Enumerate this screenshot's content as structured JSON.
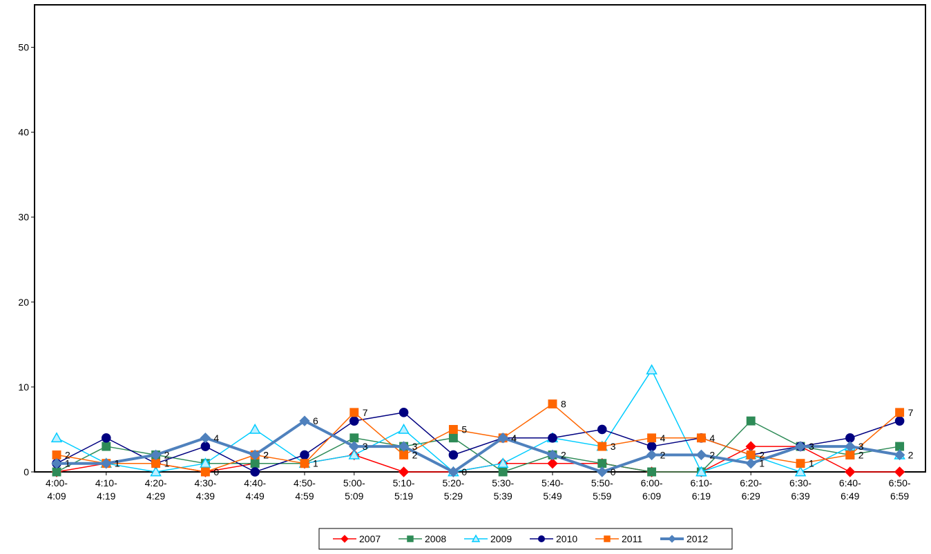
{
  "chart_data": {
    "type": "line",
    "ylim": [
      0,
      50
    ],
    "yticks": [
      0,
      10,
      20,
      30,
      40,
      50
    ],
    "categories": [
      [
        "4:00-",
        "4:09"
      ],
      [
        "4:10-",
        "4:19"
      ],
      [
        "4:20-",
        "4:29"
      ],
      [
        "4:30-",
        "4:39"
      ],
      [
        "4:40-",
        "4:49"
      ],
      [
        "4:50-",
        "4:59"
      ],
      [
        "5:00-",
        "5:09"
      ],
      [
        "5:10-",
        "5:19"
      ],
      [
        "5:20-",
        "5:29"
      ],
      [
        "5:30-",
        "5:39"
      ],
      [
        "5:40-",
        "5:49"
      ],
      [
        "5:50-",
        "5:59"
      ],
      [
        "6:00-",
        "6:09"
      ],
      [
        "6:10-",
        "6:19"
      ],
      [
        "6:20-",
        "6:29"
      ],
      [
        "6:30-",
        "6:39"
      ],
      [
        "6:40-",
        "6:49"
      ],
      [
        "6:50-",
        "6:59"
      ]
    ],
    "legend_position": "bottom",
    "series": [
      {
        "name": "2007",
        "color": "#ff0000",
        "marker": "diamond",
        "width": 1.5,
        "labels": false,
        "values": [
          0,
          1,
          1,
          0,
          1,
          1,
          2,
          0,
          0,
          1,
          1,
          1,
          0,
          0,
          3,
          3,
          0,
          0
        ]
      },
      {
        "name": "2008",
        "color": "#2e8b57",
        "marker": "square",
        "width": 1.5,
        "labels": false,
        "values": [
          0,
          3,
          2,
          1,
          1,
          1,
          4,
          3,
          4,
          0,
          2,
          1,
          0,
          0,
          6,
          3,
          2,
          3
        ]
      },
      {
        "name": "2009",
        "color": "#00ccff",
        "marker": "triangle",
        "width": 1.5,
        "labels": false,
        "values": [
          4,
          1,
          0,
          1,
          5,
          1,
          2,
          5,
          0,
          1,
          4,
          3,
          12,
          0,
          2,
          0,
          3,
          2
        ]
      },
      {
        "name": "2010",
        "color": "#000080",
        "marker": "circle",
        "width": 1.5,
        "labels": false,
        "values": [
          1,
          4,
          1,
          3,
          0,
          2,
          6,
          7,
          2,
          4,
          4,
          5,
          3,
          4,
          2,
          3,
          4,
          6
        ]
      },
      {
        "name": "2011",
        "color": "#ff6600",
        "marker": "square",
        "width": 1.5,
        "labels": true,
        "values": [
          2,
          1,
          1,
          0,
          2,
          1,
          7,
          2,
          5,
          4,
          8,
          3,
          4,
          4,
          2,
          1,
          2,
          7
        ]
      },
      {
        "name": "2012",
        "color": "#4f81bd",
        "marker": "diamond",
        "width": 4,
        "labels": true,
        "values": [
          1,
          1,
          2,
          4,
          2,
          6,
          3,
          3,
          0,
          4,
          2,
          0,
          2,
          2,
          1,
          3,
          3,
          2
        ]
      }
    ]
  }
}
